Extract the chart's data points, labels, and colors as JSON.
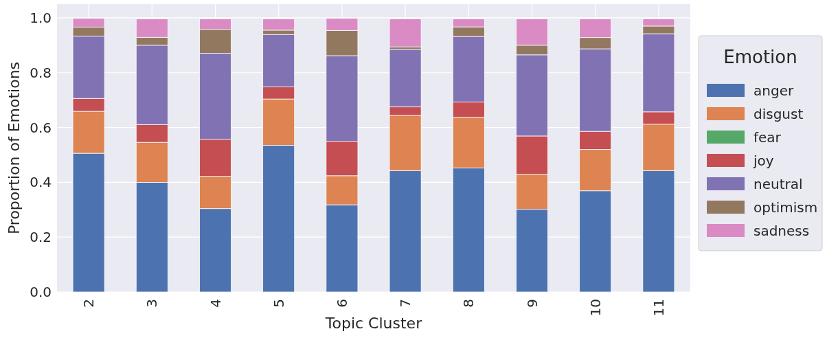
{
  "chart_data": {
    "type": "bar",
    "stacked": true,
    "xlabel": "Topic Cluster",
    "ylabel": "Proportion of Emotions",
    "legend_title": "Emotion",
    "legend": "right",
    "grid": true,
    "categories": [
      "2",
      "3",
      "4",
      "5",
      "6",
      "7",
      "8",
      "9",
      "10",
      "11"
    ],
    "ylim": [
      0,
      1.05
    ],
    "yticks": [
      {
        "value": 0,
        "label": "0.0"
      },
      {
        "value": 0.2,
        "label": "0.2"
      },
      {
        "value": 0.4,
        "label": "0.4"
      },
      {
        "value": 0.6,
        "label": "0.6"
      },
      {
        "value": 0.8,
        "label": "0.8"
      },
      {
        "value": 1,
        "label": "1.0"
      }
    ],
    "series": [
      {
        "name": "anger",
        "color": "#4c72b0",
        "values": [
          0.506,
          0.4,
          0.304,
          0.535,
          0.318,
          0.442,
          0.452,
          0.302,
          0.369,
          0.442
        ]
      },
      {
        "name": "disgust",
        "color": "#dd8452",
        "values": [
          0.153,
          0.146,
          0.118,
          0.169,
          0.106,
          0.202,
          0.185,
          0.128,
          0.151,
          0.17
        ]
      },
      {
        "name": "fear",
        "color": "#55a868",
        "values": [
          0,
          0,
          0,
          0,
          0,
          0,
          0,
          0,
          0,
          0
        ]
      },
      {
        "name": "joy",
        "color": "#c44e52",
        "values": [
          0.047,
          0.064,
          0.135,
          0.044,
          0.126,
          0.031,
          0.056,
          0.139,
          0.066,
          0.045
        ]
      },
      {
        "name": "neutral",
        "color": "#8172b3",
        "values": [
          0.227,
          0.29,
          0.314,
          0.191,
          0.312,
          0.21,
          0.239,
          0.296,
          0.301,
          0.285
        ]
      },
      {
        "name": "optimism",
        "color": "#937860",
        "values": [
          0.033,
          0.029,
          0.087,
          0.016,
          0.092,
          0.009,
          0.035,
          0.035,
          0.041,
          0.028
        ]
      },
      {
        "name": "sadness",
        "color": "#da8bc3",
        "values": [
          0.032,
          0.067,
          0.038,
          0.041,
          0.044,
          0.102,
          0.029,
          0.096,
          0.068,
          0.026
        ]
      }
    ]
  }
}
